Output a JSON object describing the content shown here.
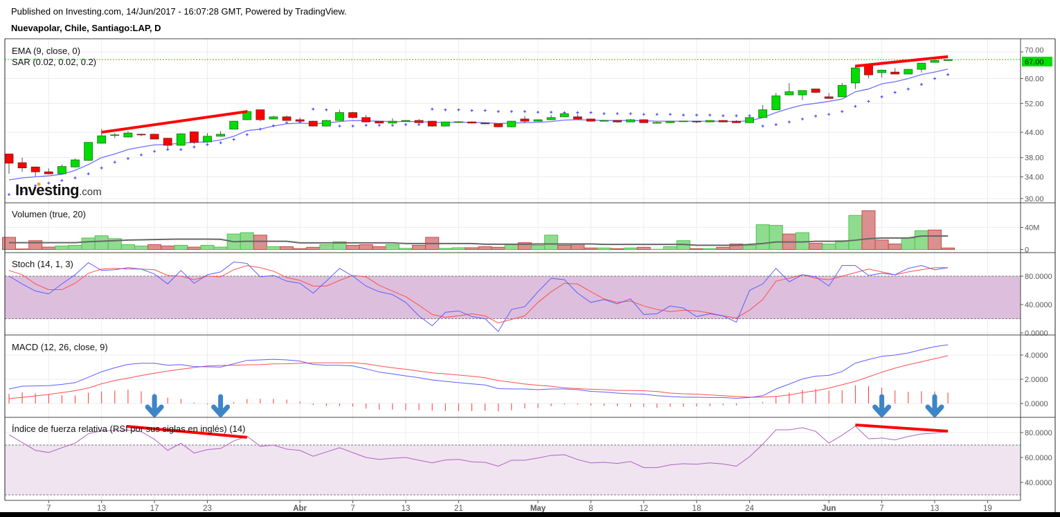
{
  "header": {
    "published": "Published on Investing.com, 14/Jun/2017 - 16:07:28 GMT, Powered by TradingView.",
    "symbol": "Nuevapolar, Chile, Santiago:LAP, D"
  },
  "logo": {
    "text": "Investing",
    "suffix": ".com"
  },
  "colors": {
    "up": "#00dd00",
    "down": "#ff0000",
    "ema": "#6f6fff",
    "sar": "#4b4bff",
    "vol_up": "#8fdc8f",
    "vol_down": "#dc8f8f",
    "vol_ma": "#666666",
    "stoch_k": "#5c5cff",
    "stoch_d": "#ff4d4d",
    "stoch_band": "#ddbfdd",
    "macd": "#5c5cff",
    "signal": "#ff4d4d",
    "histogram": "#ff3333",
    "rsi": "#b061c0",
    "rsi_band": "#f0e4f1",
    "trendline": "#ff0000",
    "arrow": "#3d85c6",
    "last_price": "#00dd00"
  },
  "x_ticks": [
    {
      "label": "7",
      "index": 3
    },
    {
      "label": "13",
      "index": 7
    },
    {
      "label": "17",
      "index": 11
    },
    {
      "label": "23",
      "index": 15
    },
    {
      "label": "Abr",
      "index": 22,
      "month": true
    },
    {
      "label": "7",
      "index": 26
    },
    {
      "label": "13",
      "index": 30
    },
    {
      "label": "21",
      "index": 34
    },
    {
      "label": "May",
      "index": 40,
      "month": true
    },
    {
      "label": "8",
      "index": 44
    },
    {
      "label": "12",
      "index": 48
    },
    {
      "label": "18",
      "index": 52
    },
    {
      "label": "24",
      "index": 56
    },
    {
      "label": "Jun",
      "index": 62,
      "month": true
    },
    {
      "label": "7",
      "index": 66
    },
    {
      "label": "13",
      "index": 70
    },
    {
      "label": "19",
      "index": 74
    }
  ],
  "chart_data": [
    {
      "type": "candlestick",
      "legend": [
        "EMA (9, close, 0)",
        "SAR (0.02, 0.02, 0.2)"
      ],
      "scale": "log",
      "y_ticks": [
        "70.00",
        "60.00",
        "52.00",
        "44.00",
        "38.00",
        "34.00",
        "30.00"
      ],
      "last_price": "67.00",
      "ohlc": [
        [
          38.8,
          38.9,
          34.6,
          36.8
        ],
        [
          36.9,
          38.0,
          35.0,
          35.8
        ],
        [
          36.0,
          36.1,
          34.1,
          35.0
        ],
        [
          35.0,
          35.7,
          34.5,
          34.6
        ],
        [
          34.6,
          36.5,
          34.5,
          36.1
        ],
        [
          36.0,
          37.8,
          35.9,
          37.5
        ],
        [
          37.4,
          41.6,
          37.3,
          41.5
        ],
        [
          41.3,
          44.8,
          41.2,
          43.1
        ],
        [
          43.3,
          43.8,
          42.5,
          43.35
        ],
        [
          42.8,
          44.3,
          42.7,
          43.8
        ],
        [
          43.5,
          43.6,
          43.0,
          43.45
        ],
        [
          43.5,
          43.6,
          42.2,
          42.3
        ],
        [
          42.5,
          42.6,
          39.7,
          40.8
        ],
        [
          40.8,
          43.7,
          40.7,
          43.6
        ],
        [
          44.1,
          44.2,
          41.1,
          41.5
        ],
        [
          41.6,
          43.8,
          41.5,
          43.0
        ],
        [
          43.0,
          44.3,
          42.9,
          43.5
        ],
        [
          44.8,
          47.0,
          44.7,
          46.9
        ],
        [
          47.3,
          50.1,
          47.2,
          49.6
        ],
        [
          50.1,
          50.2,
          46.9,
          47.3
        ],
        [
          47.5,
          48.4,
          47.4,
          48.1
        ],
        [
          48.1,
          48.4,
          47.0,
          47.1
        ],
        [
          47.3,
          47.9,
          46.8,
          46.9
        ],
        [
          46.9,
          47.0,
          45.5,
          45.6
        ],
        [
          45.6,
          47.3,
          45.5,
          47.1
        ],
        [
          47.1,
          50.1,
          47.0,
          49.3
        ],
        [
          49.3,
          49.5,
          47.7,
          47.9
        ],
        [
          47.9,
          48.6,
          46.6,
          46.7
        ],
        [
          46.9,
          47.0,
          46.3,
          46.4
        ],
        [
          46.4,
          47.7,
          46.3,
          46.9
        ],
        [
          46.9,
          47.2,
          46.8,
          47.1
        ],
        [
          47.1,
          47.5,
          46.4,
          46.5
        ],
        [
          46.9,
          47.0,
          45.4,
          45.6
        ],
        [
          45.6,
          46.8,
          45.5,
          46.7
        ],
        [
          46.7,
          46.9,
          46.6,
          46.75
        ],
        [
          46.7,
          46.9,
          46.3,
          46.4
        ],
        [
          46.4,
          46.5,
          46.1,
          46.2
        ],
        [
          46.2,
          46.3,
          45.3,
          45.4
        ],
        [
          45.4,
          47.0,
          45.3,
          46.9
        ],
        [
          47.5,
          48.3,
          46.4,
          46.9
        ],
        [
          46.9,
          47.4,
          46.8,
          47.3
        ],
        [
          47.3,
          48.6,
          47.2,
          47.9
        ],
        [
          48.1,
          49.1,
          48.0,
          49.0
        ],
        [
          48.1,
          48.8,
          47.4,
          47.5
        ],
        [
          47.5,
          47.6,
          46.8,
          46.9
        ],
        [
          46.9,
          47.2,
          46.8,
          47.1
        ],
        [
          47.1,
          47.2,
          46.5,
          46.7
        ],
        [
          46.7,
          47.5,
          46.6,
          47.3
        ],
        [
          47.3,
          47.4,
          46.4,
          46.5
        ],
        [
          46.5,
          46.8,
          46.3,
          46.55
        ],
        [
          46.5,
          47.0,
          46.4,
          46.9
        ],
        [
          46.9,
          47.0,
          46.8,
          46.95
        ],
        [
          46.9,
          47.0,
          46.4,
          46.7
        ],
        [
          46.7,
          47.2,
          46.6,
          47.1
        ],
        [
          47.1,
          47.2,
          46.6,
          46.7
        ],
        [
          46.9,
          47.2,
          46.4,
          46.5
        ],
        [
          46.5,
          48.0,
          46.4,
          47.9
        ],
        [
          47.9,
          51.5,
          47.8,
          50.1
        ],
        [
          50.1,
          55.2,
          50.0,
          54.3
        ],
        [
          54.6,
          58.5,
          54.5,
          55.6
        ],
        [
          54.6,
          56.1,
          53.0,
          56.0
        ],
        [
          56.5,
          56.6,
          55.2,
          55.4
        ],
        [
          54.0,
          55.2,
          53.4,
          53.5
        ],
        [
          54.0,
          58.5,
          53.9,
          57.7
        ],
        [
          58.5,
          64.8,
          56.5,
          63.8
        ],
        [
          64.8,
          64.9,
          60.2,
          61.3
        ],
        [
          62.1,
          63.1,
          60.4,
          63.0
        ],
        [
          62.3,
          63.8,
          61.5,
          61.6
        ],
        [
          61.6,
          63.4,
          61.5,
          63.3
        ],
        [
          63.3,
          65.7,
          62.1,
          65.6
        ],
        [
          65.9,
          67.8,
          65.8,
          66.6
        ],
        [
          66.6,
          67.1,
          66.5,
          67.0
        ]
      ],
      "ema": [
        33.4,
        33.8,
        34.0,
        34.2,
        34.5,
        35.3,
        36.5,
        38.0,
        38.8,
        39.8,
        40.4,
        40.9,
        41.0,
        41.3,
        41.5,
        41.6,
        42.1,
        43.0,
        44.4,
        44.8,
        45.6,
        46.2,
        46.4,
        46.2,
        46.4,
        46.8,
        47.1,
        47.0,
        46.9,
        46.8,
        46.8,
        46.8,
        46.6,
        46.6,
        46.6,
        46.6,
        46.5,
        46.3,
        46.4,
        46.5,
        46.6,
        46.8,
        47.2,
        47.3,
        47.2,
        47.1,
        47.1,
        47.1,
        47.0,
        46.9,
        46.9,
        46.9,
        46.9,
        46.9,
        46.9,
        46.8,
        47.0,
        47.9,
        49.3,
        50.5,
        51.5,
        52.0,
        52.6,
        53.3,
        55.6,
        56.5,
        58.2,
        58.9,
        60.0,
        61.4,
        62.3,
        63.4
      ],
      "sar": [
        30.7,
        31.2,
        32.3,
        32.8,
        33.3,
        33.8,
        34.6,
        35.8,
        37.0,
        37.8,
        38.6,
        39.4,
        39.8,
        39.8,
        40.4,
        41.0,
        41.4,
        42.2,
        43.4,
        44.8,
        45.7,
        46.5,
        46.7,
        50.3,
        50.1,
        45.6,
        45.6,
        45.8,
        45.8,
        45.8,
        46.0,
        46.0,
        50.3,
        50.1,
        50.1,
        49.9,
        49.9,
        49.6,
        49.6,
        49.6,
        49.4,
        49.4,
        49.3,
        49.3,
        49.3,
        49.0,
        49.0,
        49.0,
        48.8,
        48.8,
        48.8,
        48.6,
        48.6,
        48.6,
        48.4,
        48.4,
        48.4,
        45.6,
        46.0,
        46.7,
        47.5,
        48.3,
        48.8,
        49.6,
        51.1,
        52.6,
        54.0,
        55.4,
        56.5,
        58.0,
        60.0,
        61.4
      ],
      "trendlines": [
        {
          "from": [
            7,
            44.0
          ],
          "to": [
            18,
            49.6
          ]
        },
        {
          "from": [
            64,
            64.5
          ],
          "to": [
            71,
            68.1
          ]
        }
      ]
    },
    {
      "type": "bar",
      "legend": "Volumen (true, 20)",
      "y_ticks": [
        "40M",
        "0"
      ],
      "unit": "M",
      "values": [
        22,
        1,
        16,
        4.4,
        6.4,
        7.6,
        20.8,
        24.8,
        19.6,
        8.8,
        6.4,
        8.8,
        6.4,
        7.6,
        4.4,
        7.6,
        4.4,
        28,
        30.4,
        26,
        5.2,
        5.2,
        1.6,
        4,
        8.8,
        14,
        7.6,
        8.8,
        5.2,
        8.8,
        2,
        7.6,
        22,
        2,
        3.2,
        3.2,
        5.2,
        4,
        10,
        12.4,
        7.6,
        26,
        7.6,
        10,
        2.8,
        2.8,
        1.6,
        2.8,
        4,
        0.4,
        5.2,
        16,
        1.6,
        1.6,
        4,
        10,
        7.6,
        44.8,
        43.6,
        28,
        30.4,
        11.2,
        10,
        16,
        61.6,
        70,
        17.2,
        10,
        20.8,
        34,
        35.2,
        2.8
      ],
      "up": [
        0,
        0,
        0,
        0,
        1,
        1,
        1,
        1,
        1,
        1,
        1,
        0,
        0,
        1,
        0,
        1,
        1,
        1,
        1,
        0,
        1,
        0,
        0,
        0,
        1,
        1,
        0,
        0,
        0,
        1,
        1,
        0,
        0,
        1,
        1,
        0,
        0,
        0,
        1,
        0,
        1,
        1,
        0,
        0,
        0,
        1,
        0,
        1,
        0,
        1,
        1,
        1,
        0,
        1,
        0,
        0,
        1,
        1,
        1,
        0,
        1,
        0,
        1,
        1,
        1,
        0,
        0,
        0,
        1,
        1,
        0,
        0
      ],
      "ma": [
        12.4,
        12.4,
        12.4,
        12.4,
        12.4,
        12.4,
        14,
        15,
        16,
        17,
        17.5,
        18,
        18.5,
        18.8,
        18.8,
        18.8,
        18.4,
        14,
        14.8,
        14.8,
        14.8,
        14.8,
        12,
        12,
        12,
        12,
        12,
        12,
        12,
        12,
        10.8,
        10.8,
        10.8,
        10.8,
        10.8,
        10.8,
        9.6,
        9.6,
        9.6,
        9.6,
        10,
        10,
        10,
        10,
        10,
        9.2,
        9.2,
        9.2,
        9.2,
        9.2,
        9.2,
        9.2,
        7.6,
        7.6,
        7.6,
        7.6,
        9.2,
        10.8,
        13.6,
        13.6,
        13.6,
        14.8,
        14.8,
        14.8,
        16.8,
        19.6,
        20.8,
        20.8,
        20.8,
        24.4,
        24.4,
        24.4
      ]
    },
    {
      "type": "line",
      "legend": "Stoch (14, 1, 3)",
      "y_ticks": [
        "80.0000",
        "40.0000",
        "0.0000"
      ],
      "bands": [
        20,
        80
      ],
      "k": [
        80,
        69,
        59,
        55,
        69,
        82,
        99,
        88,
        89,
        92,
        90,
        83,
        69,
        88,
        70,
        82,
        86,
        100,
        98,
        79,
        81,
        73,
        70,
        56,
        73,
        91,
        80,
        66,
        58,
        54,
        43,
        24,
        10,
        29,
        31,
        23,
        20,
        2,
        33,
        37,
        58,
        77,
        75,
        56,
        43,
        47,
        41,
        48,
        26,
        27,
        38,
        35,
        23,
        27,
        24,
        15,
        60,
        69,
        91,
        72,
        82,
        79,
        66,
        95,
        95,
        81,
        84,
        82,
        91,
        95,
        89,
        92
      ],
      "d": [
        88,
        82,
        69,
        61,
        61,
        70,
        84,
        90,
        91,
        90,
        90,
        89,
        81,
        80,
        75,
        80,
        79,
        89,
        95,
        92,
        87,
        78,
        74,
        66,
        66,
        74,
        81,
        79,
        67,
        59,
        51,
        39,
        26,
        22,
        24,
        27,
        24,
        14,
        19,
        24,
        43,
        58,
        70,
        69,
        58,
        48,
        43,
        45,
        38,
        33,
        30,
        32,
        31,
        28,
        24,
        21,
        32,
        47,
        73,
        77,
        82,
        77,
        75,
        80,
        85,
        90,
        86,
        82,
        86,
        89,
        92,
        92
      ]
    },
    {
      "type": "line",
      "legend": "MACD (12, 26, close, 9)",
      "y_ticks": [
        "4.0000",
        "2.0000",
        "0.0000"
      ],
      "macd": [
        1.19,
        1.43,
        1.45,
        1.47,
        1.58,
        1.72,
        2.17,
        2.62,
        2.95,
        3.23,
        3.32,
        3.32,
        3.16,
        3.21,
        3.05,
        3.03,
        3.01,
        3.28,
        3.56,
        3.6,
        3.65,
        3.6,
        3.5,
        3.23,
        3.16,
        3.16,
        3.1,
        2.86,
        2.59,
        2.44,
        2.28,
        2.13,
        1.94,
        1.83,
        1.72,
        1.62,
        1.53,
        1.23,
        1.2,
        1.2,
        1.14,
        1.2,
        1.2,
        1.14,
        1.0,
        0.95,
        0.86,
        0.8,
        0.77,
        0.64,
        0.58,
        0.52,
        0.52,
        0.49,
        0.49,
        0.43,
        0.49,
        0.64,
        1.2,
        1.6,
        2.03,
        2.26,
        2.32,
        2.64,
        3.33,
        3.63,
        3.89,
        4.0,
        4.17,
        4.45,
        4.69,
        4.84
      ],
      "signal": [
        0.39,
        0.51,
        0.62,
        0.75,
        0.9,
        1.06,
        1.28,
        1.63,
        1.89,
        2.09,
        2.31,
        2.5,
        2.68,
        2.83,
        2.97,
        3.1,
        3.14,
        3.16,
        3.19,
        3.21,
        3.27,
        3.28,
        3.32,
        3.36,
        3.36,
        3.36,
        3.36,
        3.28,
        3.1,
        2.95,
        2.83,
        2.68,
        2.53,
        2.45,
        2.35,
        2.25,
        2.13,
        1.89,
        1.76,
        1.61,
        1.51,
        1.42,
        1.29,
        1.23,
        1.18,
        1.14,
        1.08,
        1.08,
        1.05,
        0.99,
        0.86,
        0.8,
        0.77,
        0.71,
        0.64,
        0.58,
        0.52,
        0.52,
        0.58,
        0.71,
        0.9,
        1.05,
        1.27,
        1.55,
        1.83,
        2.2,
        2.58,
        2.92,
        3.2,
        3.44,
        3.7,
        3.94
      ],
      "arrows_down_at": [
        11,
        16,
        66,
        70
      ]
    },
    {
      "type": "line",
      "legend": "Índice de fuerza relativa (RSI por sus siglas en inglés) (14)",
      "y_ticks": [
        "80.0000",
        "60.0000",
        "40.0000"
      ],
      "bands": [
        30,
        70
      ],
      "rsi": [
        78.3,
        72,
        65.7,
        64,
        67.8,
        71.5,
        79,
        81.5,
        81.5,
        82,
        80.7,
        74.6,
        65.7,
        71.5,
        63.5,
        66.3,
        67.2,
        73.3,
        77,
        69,
        70,
        66.7,
        65.7,
        61,
        64.4,
        67.8,
        63.9,
        60,
        58.5,
        59.4,
        60,
        57.8,
        55.7,
        58,
        58.5,
        56.5,
        56.1,
        53,
        57.8,
        57.8,
        59.6,
        61.7,
        62.2,
        58.3,
        55.6,
        56.1,
        55.2,
        56.7,
        51.9,
        51.9,
        54,
        55,
        54.6,
        55.7,
        54.8,
        53,
        60.6,
        70.6,
        82.2,
        82.2,
        83.9,
        81,
        71.5,
        77.9,
        85.2,
        75,
        75.6,
        74.1,
        76.9,
        78.9,
        79.6,
        80.7
      ],
      "trendlines": [
        {
          "from": [
            8.9,
            85
          ],
          "to": [
            18,
            76.2
          ]
        },
        {
          "from": [
            64,
            86.1
          ],
          "to": [
            71,
            81.1
          ]
        }
      ]
    }
  ]
}
